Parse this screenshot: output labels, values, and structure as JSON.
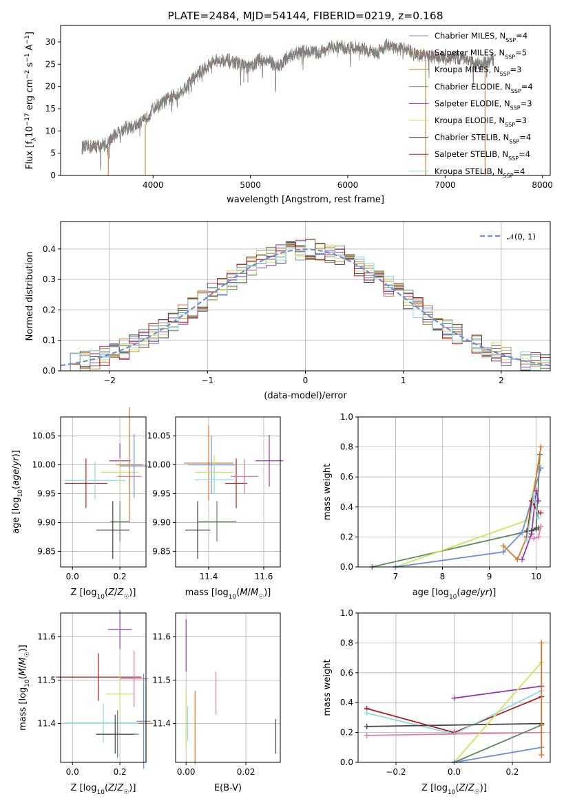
{
  "colors": {
    "Chabrier MILES": "#6a8fd8",
    "Salpeter MILES": "#d9742a",
    "Kroupa MILES": "#b5842a",
    "Chabrier ELODIE": "#5a8a5a",
    "Salpeter ELODIE": "#9b35b0",
    "Kroupa ELODIE": "#cde35a",
    "Chabrier STELIB": "#444444",
    "Salpeter STELIB": "#b01c1c",
    "Kroupa STELIB": "#88dbe0",
    "pink": "#e07aa8",
    "normal": "#6a8fd8"
  },
  "chart_data": [
    {
      "type": "line",
      "title": "PLATE=2484, MJD=54144, FIBERID=0219, z=0.168",
      "xlabel": "wavelength [Angstrom, rest frame]",
      "ylabel": "Flux [f_λ 10^-17 erg cm^-2 s^-1 A^-1]",
      "xlim": [
        3050,
        8080
      ],
      "ylim": [
        0,
        33.7
      ],
      "xticks": [
        "4000",
        "5000",
        "6000",
        "7000",
        "8000"
      ],
      "yticks": [
        "0",
        "5",
        "10",
        "15",
        "20",
        "25",
        "30"
      ],
      "legend_position": "upper right",
      "legend": [
        {
          "model": "Chabrier MILES",
          "nssp": "=4"
        },
        {
          "model": "Salpeter MILES",
          "nssp": "=5"
        },
        {
          "model": "Kroupa MILES",
          "nssp": "=3"
        },
        {
          "model": "Chabrier ELODIE",
          "nssp": "=4"
        },
        {
          "model": "Salpeter ELODIE",
          "nssp": "=3"
        },
        {
          "model": "Kroupa ELODIE",
          "nssp": "=3"
        },
        {
          "model": "Chabrier STELIB",
          "nssp": "=4"
        },
        {
          "model": "Salpeter STELIB",
          "nssp": "=4"
        },
        {
          "model": "Kroupa STELIB",
          "nssp": "=4"
        }
      ],
      "spectrum_envelope": {
        "x": [
          3270,
          3400,
          3530,
          3600,
          3700,
          3800,
          3900,
          4000,
          4100,
          4200,
          4300,
          4400,
          4500,
          4600,
          4700,
          4800,
          4900,
          5000,
          5100,
          5200,
          5300,
          5400,
          5500,
          5600,
          5700,
          5800,
          5900,
          6000,
          6100,
          6200,
          6300,
          6400,
          6500,
          6600,
          6700,
          6800,
          6900,
          7000,
          7100,
          7200,
          7300,
          7400,
          7500
        ],
        "y": [
          6.3,
          6.5,
          7.2,
          9.0,
          10.5,
          11.0,
          12.0,
          15.0,
          16.3,
          17.8,
          19.0,
          21.5,
          23.5,
          25.3,
          26.0,
          25.7,
          25.0,
          24.2,
          26.2,
          25.5,
          24.5,
          27.0,
          27.5,
          28.0,
          27.5,
          28.5,
          29.0,
          28.5,
          28.8,
          28.0,
          27.5,
          29.3,
          28.5,
          28.5,
          27.0,
          27.0,
          26.5,
          26.2,
          26.5,
          26.3,
          25.0,
          25.2,
          26.0
        ]
      }
    },
    {
      "type": "line",
      "xlabel": "(data-model)/error",
      "ylabel": "Normed distribution",
      "xlim": [
        -2.5,
        2.5
      ],
      "ylim": [
        0,
        0.49
      ],
      "xticks": [
        "−2",
        "−1",
        "0",
        "1",
        "2"
      ],
      "yticks": [
        "0.0",
        "0.1",
        "0.2",
        "0.3",
        "0.4"
      ],
      "grid": true,
      "legend_position": "upper right",
      "legend": [
        "𝒩(0, 1)"
      ],
      "bin_width": 0.1
    },
    {
      "type": "scatter",
      "xlabel": "Z [log10(Z/Z☉)]",
      "ylabel": "age  [log10(age/yr)]",
      "xlim": [
        -0.05,
        0.31
      ],
      "ylim": [
        9.823,
        10.083
      ],
      "xticks": [
        "0.0",
        "0.2"
      ],
      "yticks": [
        "9.85",
        "9.90",
        "9.95",
        "10.00",
        "10.05"
      ],
      "grid": true,
      "points": [
        {
          "color": "#b01c1c",
          "x": 0.057,
          "y": 9.968,
          "xerr": 0.09,
          "yerr": 0.043
        },
        {
          "color": "#88dbe0",
          "x": 0.095,
          "y": 9.973,
          "xerr": 0.13,
          "yerr": 0.033
        },
        {
          "color": "#9b35b0",
          "x": 0.2,
          "y": 10.007,
          "xerr": 0.045,
          "yerr": 0.03
        },
        {
          "color": "#cde35a",
          "x": 0.2,
          "y": 9.987,
          "xerr": 0.08,
          "yerr": 0.025
        },
        {
          "color": "#5a8a5a",
          "x": 0.2,
          "y": 9.902,
          "xerr": 0.04,
          "yerr": 0.035
        },
        {
          "color": "#444444",
          "x": 0.17,
          "y": 9.887,
          "xerr": 0.07,
          "yerr": 0.05
        },
        {
          "color": "#e07aa8",
          "x": 0.24,
          "y": 9.98,
          "xerr": 0.05,
          "yerr": 0.03
        },
        {
          "color": "#d9742a",
          "x": 0.24,
          "y": 10.0,
          "xerr": 0.055,
          "yerr": 0.1
        },
        {
          "color": "#6a8fd8",
          "x": 0.26,
          "y": 9.998,
          "xerr": 0.06,
          "yerr": 0.055
        }
      ]
    },
    {
      "type": "scatter",
      "xlabel": "mass [log10(M/M☉)]",
      "ylabel": "",
      "xlim": [
        11.28,
        11.66
      ],
      "ylim": [
        9.823,
        10.083
      ],
      "xticks": [
        "11.4",
        "11.6"
      ],
      "yticks": [
        "9.85",
        "9.90",
        "9.95",
        "10.00",
        "10.05"
      ],
      "grid": true,
      "points": [
        {
          "color": "#d9742a",
          "x": 11.4,
          "y": 10.003,
          "xerr": 0.09,
          "yerr": 0.065
        },
        {
          "color": "#6a8fd8",
          "x": 11.41,
          "y": 10.0,
          "xerr": 0.085,
          "yerr": 0.05
        },
        {
          "color": "#cde35a",
          "x": 11.42,
          "y": 9.987,
          "xerr": 0.07,
          "yerr": 0.03
        },
        {
          "color": "#88dbe0",
          "x": 11.42,
          "y": 9.974,
          "xerr": 0.07,
          "yerr": 0.025
        },
        {
          "color": "#444444",
          "x": 11.36,
          "y": 9.887,
          "xerr": 0.045,
          "yerr": 0.05
        },
        {
          "color": "#5a8a5a",
          "x": 11.43,
          "y": 9.902,
          "xerr": 0.07,
          "yerr": 0.035
        },
        {
          "color": "#b01c1c",
          "x": 11.5,
          "y": 9.968,
          "xerr": 0.04,
          "yerr": 0.043
        },
        {
          "color": "#e07aa8",
          "x": 11.53,
          "y": 9.98,
          "xerr": 0.05,
          "yerr": 0.03
        },
        {
          "color": "#9b35b0",
          "x": 11.62,
          "y": 10.007,
          "xerr": 0.05,
          "yerr": 0.045
        }
      ]
    },
    {
      "type": "line",
      "xlabel": "age  [log10(age/yr)]",
      "ylabel": "mass weight",
      "xlim": [
        6.2,
        10.3
      ],
      "ylim": [
        0,
        1.0
      ],
      "xticks": [
        "7",
        "8",
        "9",
        "10"
      ],
      "yticks": [
        "0.0",
        "0.2",
        "0.4",
        "0.6",
        "0.8",
        "1.0"
      ],
      "grid": true,
      "series": [
        {
          "color": "#5a8a5a",
          "x": [
            6.5,
            10.0,
            10.08
          ],
          "y": [
            0.0,
            0.25,
            0.75
          ]
        },
        {
          "color": "#cde35a",
          "x": [
            7.0,
            9.8,
            10.05
          ],
          "y": [
            0.0,
            0.31,
            0.68
          ]
        },
        {
          "color": "#6a8fd8",
          "x": [
            7.0,
            9.3,
            9.7,
            10.1
          ],
          "y": [
            0.0,
            0.1,
            0.23,
            0.66
          ]
        },
        {
          "color": "#d9742a",
          "x": [
            9.3,
            9.6,
            9.8,
            10.1
          ],
          "y": [
            0.14,
            0.05,
            0.2,
            0.8
          ]
        },
        {
          "color": "#9b35b0",
          "x": [
            9.7,
            9.9,
            10.0,
            10.05
          ],
          "y": [
            0.05,
            0.22,
            0.51,
            0.44
          ]
        },
        {
          "color": "#444444",
          "x": [
            9.8,
            9.9,
            10.0,
            10.05
          ],
          "y": [
            0.24,
            0.24,
            0.26,
            0.26
          ]
        },
        {
          "color": "#b01c1c",
          "x": [
            9.8,
            9.9,
            10.05,
            10.1
          ],
          "y": [
            0.2,
            0.44,
            0.36,
            0.36
          ]
        },
        {
          "color": "#88dbe0",
          "x": [
            9.8,
            9.95,
            10.05
          ],
          "y": [
            0.18,
            0.48,
            0.33
          ]
        },
        {
          "color": "#e07aa8",
          "x": [
            9.95,
            10.05,
            10.1
          ],
          "y": [
            0.19,
            0.2,
            0.27
          ]
        }
      ]
    },
    {
      "type": "scatter",
      "xlabel": "Z [log10(Z/Z☉)]",
      "ylabel": "mass [log10(M/M☉)]",
      "xlim": [
        -0.05,
        0.31
      ],
      "ylim": [
        11.31,
        11.655
      ],
      "xticks": [
        "0.0",
        "0.2"
      ],
      "yticks": [
        "11.4",
        "11.5",
        "11.6"
      ],
      "grid": true,
      "points": [
        {
          "color": "#b01c1c",
          "x": 0.11,
          "y": 11.507,
          "xerr": 0.18,
          "yerr": 0.055
        },
        {
          "color": "#88dbe0",
          "x": 0.13,
          "y": 11.401,
          "xerr": 0.17,
          "yerr": 0.045
        },
        {
          "color": "#9b35b0",
          "x": 0.2,
          "y": 11.617,
          "xerr": 0.05,
          "yerr": 0.045
        },
        {
          "color": "#cde35a",
          "x": 0.2,
          "y": 11.468,
          "xerr": 0.06,
          "yerr": 0.05
        },
        {
          "color": "#5a8a5a",
          "x": 0.19,
          "y": 11.375,
          "xerr": 0.09,
          "yerr": 0.055
        },
        {
          "color": "#444444",
          "x": 0.18,
          "y": 11.375,
          "xerr": 0.08,
          "yerr": 0.045
        },
        {
          "color": "#e07aa8",
          "x": 0.26,
          "y": 11.503,
          "xerr": 0.06,
          "yerr": 0.065
        },
        {
          "color": "#d9742a",
          "x": 0.31,
          "y": 11.4,
          "xerr": 0.03,
          "yerr": 0.09
        },
        {
          "color": "#6a8fd8",
          "x": 0.3,
          "y": 11.405,
          "xerr": 0.03,
          "yerr": 0.11
        }
      ]
    },
    {
      "type": "scatter",
      "xlabel": "E(B-V)",
      "ylabel": "",
      "xlim": [
        -0.0035,
        0.0315
      ],
      "ylim": [
        11.31,
        11.655
      ],
      "xticks": [
        "0.00",
        "0.02"
      ],
      "yticks": [
        "11.4",
        "11.5",
        "11.6"
      ],
      "grid": true,
      "points": [
        {
          "color": "#9b35b0",
          "x": 0.0,
          "y": 11.58,
          "xerr": 0.0,
          "yerr": 0.06
        },
        {
          "color": "#cde35a",
          "x": 0.0,
          "y": 11.41,
          "xerr": 0.0,
          "yerr": 0.07
        },
        {
          "color": "#88dbe0",
          "x": 0.0005,
          "y": 11.4,
          "xerr": 0.0,
          "yerr": 0.04
        },
        {
          "color": "#d9742a",
          "x": 0.003,
          "y": 11.39,
          "xerr": 0.0,
          "yerr": 0.085
        },
        {
          "color": "#e07aa8",
          "x": 0.01,
          "y": 11.47,
          "xerr": 0.0,
          "yerr": 0.05
        },
        {
          "color": "#444444",
          "x": 0.03,
          "y": 11.37,
          "xerr": 0.0,
          "yerr": 0.04
        }
      ]
    },
    {
      "type": "line",
      "xlabel": "Z [log10(Z/Z☉)]",
      "ylabel": "mass weight",
      "xlim": [
        -0.33,
        0.33
      ],
      "ylim": [
        0,
        1.0
      ],
      "xticks": [
        "−0.2",
        "0.0",
        "0.2"
      ],
      "yticks": [
        "0.0",
        "0.2",
        "0.4",
        "0.6",
        "0.8",
        "1.0"
      ],
      "grid": true,
      "series": [
        {
          "color": "#b01c1c",
          "x": [
            -0.3,
            0.0,
            0.3
          ],
          "y": [
            0.36,
            0.2,
            0.44
          ]
        },
        {
          "color": "#88dbe0",
          "x": [
            -0.3,
            0.0,
            0.3
          ],
          "y": [
            0.33,
            0.19,
            0.48
          ]
        },
        {
          "color": "#444444",
          "x": [
            -0.3,
            0.3
          ],
          "y": [
            0.24,
            0.26
          ]
        },
        {
          "color": "#e07aa8",
          "x": [
            -0.3,
            0.3
          ],
          "y": [
            0.18,
            0.2
          ]
        },
        {
          "color": "#9b35b0",
          "x": [
            0.0,
            0.3
          ],
          "y": [
            0.43,
            0.51
          ]
        },
        {
          "color": "#cde35a",
          "x": [
            0.0,
            0.3
          ],
          "y": [
            0.0,
            0.67
          ]
        },
        {
          "color": "#5a8a5a",
          "x": [
            0.0,
            0.3
          ],
          "y": [
            0.0,
            0.25
          ]
        },
        {
          "color": "#6a8fd8",
          "x": [
            0.0,
            0.3
          ],
          "y": [
            0.0,
            0.1
          ]
        },
        {
          "color": "#d9742a",
          "x": [
            0.3,
            0.3
          ],
          "y": [
            0.05,
            0.8
          ]
        }
      ]
    }
  ]
}
